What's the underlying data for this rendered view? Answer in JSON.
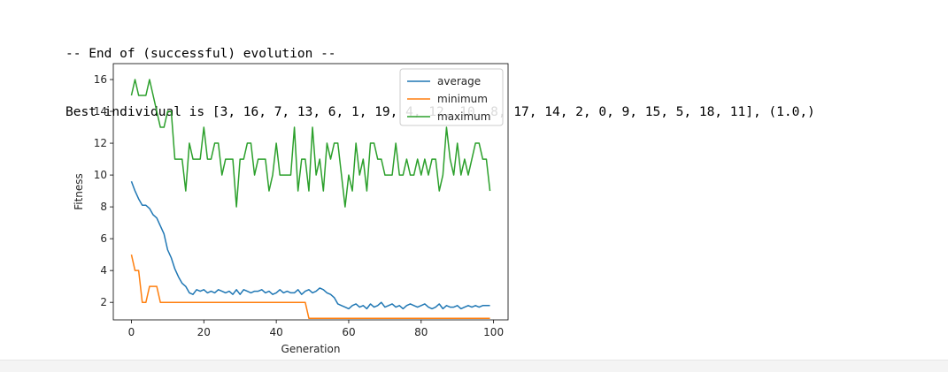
{
  "output": {
    "line1": "-- End of (successful) evolution --",
    "line2": "Best individual is [3, 16, 7, 13, 6, 1, 19, 4, 12, 10, 8, 17, 14, 2, 0, 9, 15, 5, 18, 11], (1.0,)"
  },
  "chart_data": {
    "type": "line",
    "title": "",
    "xlabel": "Generation",
    "ylabel": "Fitness",
    "xlim": [
      -5,
      104
    ],
    "ylim": [
      0.9,
      17.0
    ],
    "xticks": [
      0,
      20,
      40,
      60,
      80,
      100
    ],
    "yticks": [
      2,
      4,
      6,
      8,
      10,
      12,
      14,
      16
    ],
    "grid": false,
    "legend_position": "top-right",
    "x": [
      0,
      1,
      2,
      3,
      4,
      5,
      6,
      7,
      8,
      9,
      10,
      11,
      12,
      13,
      14,
      15,
      16,
      17,
      18,
      19,
      20,
      21,
      22,
      23,
      24,
      25,
      26,
      27,
      28,
      29,
      30,
      31,
      32,
      33,
      34,
      35,
      36,
      37,
      38,
      39,
      40,
      41,
      42,
      43,
      44,
      45,
      46,
      47,
      48,
      49,
      50,
      51,
      52,
      53,
      54,
      55,
      56,
      57,
      58,
      59,
      60,
      61,
      62,
      63,
      64,
      65,
      66,
      67,
      68,
      69,
      70,
      71,
      72,
      73,
      74,
      75,
      76,
      77,
      78,
      79,
      80,
      81,
      82,
      83,
      84,
      85,
      86,
      87,
      88,
      89,
      90,
      91,
      92,
      93,
      94,
      95,
      96,
      97,
      98,
      99
    ],
    "series": [
      {
        "name": "average",
        "color": "#1f77b4",
        "values": [
          9.6,
          9.0,
          8.5,
          8.1,
          8.1,
          7.9,
          7.5,
          7.3,
          6.8,
          6.3,
          5.3,
          4.8,
          4.1,
          3.6,
          3.2,
          3.0,
          2.6,
          2.5,
          2.8,
          2.7,
          2.8,
          2.6,
          2.7,
          2.6,
          2.8,
          2.7,
          2.6,
          2.7,
          2.5,
          2.8,
          2.5,
          2.8,
          2.7,
          2.6,
          2.7,
          2.7,
          2.8,
          2.6,
          2.7,
          2.5,
          2.6,
          2.8,
          2.6,
          2.7,
          2.6,
          2.6,
          2.8,
          2.5,
          2.7,
          2.8,
          2.6,
          2.7,
          2.9,
          2.8,
          2.6,
          2.5,
          2.3,
          1.9,
          1.8,
          1.7,
          1.6,
          1.8,
          1.9,
          1.7,
          1.8,
          1.6,
          1.9,
          1.7,
          1.8,
          2.0,
          1.7,
          1.8,
          1.9,
          1.7,
          1.8,
          1.6,
          1.8,
          1.9,
          1.8,
          1.7,
          1.8,
          1.9,
          1.7,
          1.6,
          1.7,
          1.9,
          1.6,
          1.8,
          1.7,
          1.7,
          1.8,
          1.6,
          1.7,
          1.8,
          1.7,
          1.8,
          1.7,
          1.8,
          1.8,
          1.8
        ]
      },
      {
        "name": "minimum",
        "color": "#ff7f0e",
        "values": [
          5,
          4,
          4,
          2,
          2,
          3,
          3,
          3,
          2,
          2,
          2,
          2,
          2,
          2,
          2,
          2,
          2,
          2,
          2,
          2,
          2,
          2,
          2,
          2,
          2,
          2,
          2,
          2,
          2,
          2,
          2,
          2,
          2,
          2,
          2,
          2,
          2,
          2,
          2,
          2,
          2,
          2,
          2,
          2,
          2,
          2,
          2,
          2,
          2,
          1,
          1,
          1,
          1,
          1,
          1,
          1,
          1,
          1,
          1,
          1,
          1,
          1,
          1,
          1,
          1,
          1,
          1,
          1,
          1,
          1,
          1,
          1,
          1,
          1,
          1,
          1,
          1,
          1,
          1,
          1,
          1,
          1,
          1,
          1,
          1,
          1,
          1,
          1,
          1,
          1,
          1,
          1,
          1,
          1,
          1,
          1,
          1,
          1,
          1,
          1
        ]
      },
      {
        "name": "maximum",
        "color": "#2ca02c",
        "values": [
          15,
          16,
          15,
          15,
          15,
          16,
          15,
          14,
          13,
          13,
          14,
          14,
          11,
          11,
          11,
          9,
          12,
          11,
          11,
          11,
          13,
          11,
          11,
          12,
          12,
          10,
          11,
          11,
          11,
          8,
          11,
          11,
          12,
          12,
          10,
          11,
          11,
          11,
          9,
          10,
          12,
          10,
          10,
          10,
          10,
          13,
          9,
          11,
          11,
          9,
          13,
          10,
          11,
          9,
          12,
          11,
          12,
          12,
          10,
          8,
          10,
          9,
          12,
          10,
          11,
          9,
          12,
          12,
          11,
          11,
          10,
          10,
          10,
          12,
          10,
          10,
          11,
          10,
          10,
          11,
          10,
          11,
          10,
          11,
          11,
          9,
          10,
          13,
          11,
          10,
          12,
          10,
          11,
          10,
          11,
          12,
          12,
          11,
          11,
          9
        ]
      }
    ]
  }
}
